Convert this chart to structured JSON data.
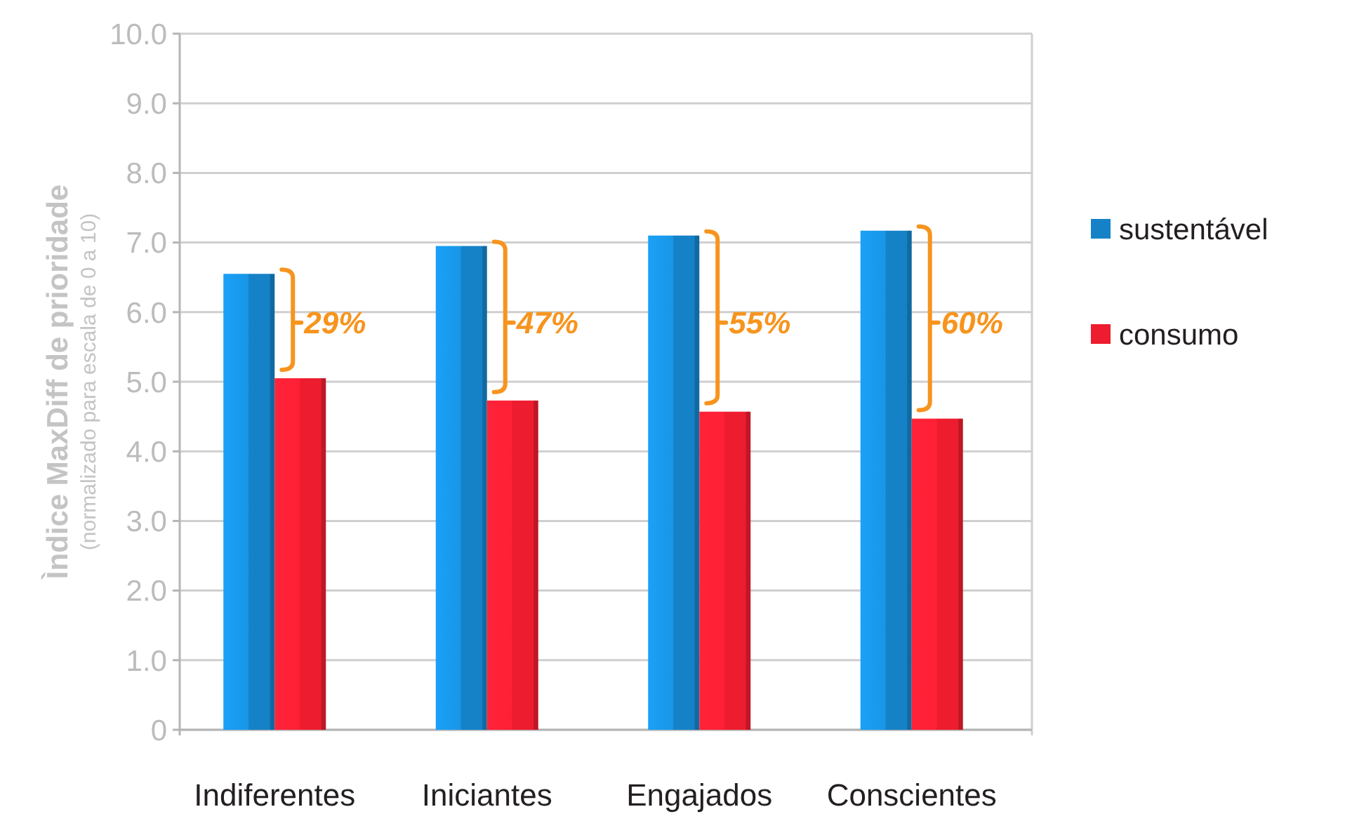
{
  "chart_data": {
    "type": "bar",
    "categories": [
      "Indiferentes",
      "Iniciantes",
      "Engajados",
      "Conscientes"
    ],
    "series": [
      {
        "name": "sustentável",
        "color": "#1582c8",
        "values": [
          6.55,
          6.95,
          7.1,
          7.17
        ]
      },
      {
        "name": "consumo",
        "color": "#ed1c2e",
        "values": [
          5.05,
          4.73,
          4.57,
          4.47
        ]
      }
    ],
    "ylabel": "Ìndice MaxDiff de prioridade\n(normalizado para escala de 0 a 10)",
    "ylim": [
      0,
      10
    ],
    "yticks": [
      0,
      {
        "value": 1,
        "label": "1.0"
      },
      {
        "value": 2,
        "label": "2.0"
      },
      {
        "value": 3,
        "label": "3.0"
      },
      {
        "value": 4,
        "label": "4.0"
      },
      {
        "value": 5,
        "label": "5.0"
      },
      {
        "value": 6,
        "label": "6.0"
      },
      {
        "value": 7,
        "label": "7.0"
      },
      {
        "value": 8,
        "label": "8.0"
      },
      {
        "value": 9,
        "label": "9.0"
      },
      {
        "value": 10,
        "label": "10.0"
      }
    ],
    "grid": "y",
    "legend": "right",
    "annotations": [
      {
        "text": "29%",
        "x": "Indiferentes",
        "y": 5.85
      },
      {
        "text": "47%",
        "x": "Iniciantes",
        "y": 5.85
      },
      {
        "text": "55%",
        "x": "Engajados",
        "y": 5.85
      },
      {
        "text": "60%",
        "x": "Conscientes",
        "y": 5.85
      }
    ]
  }
}
